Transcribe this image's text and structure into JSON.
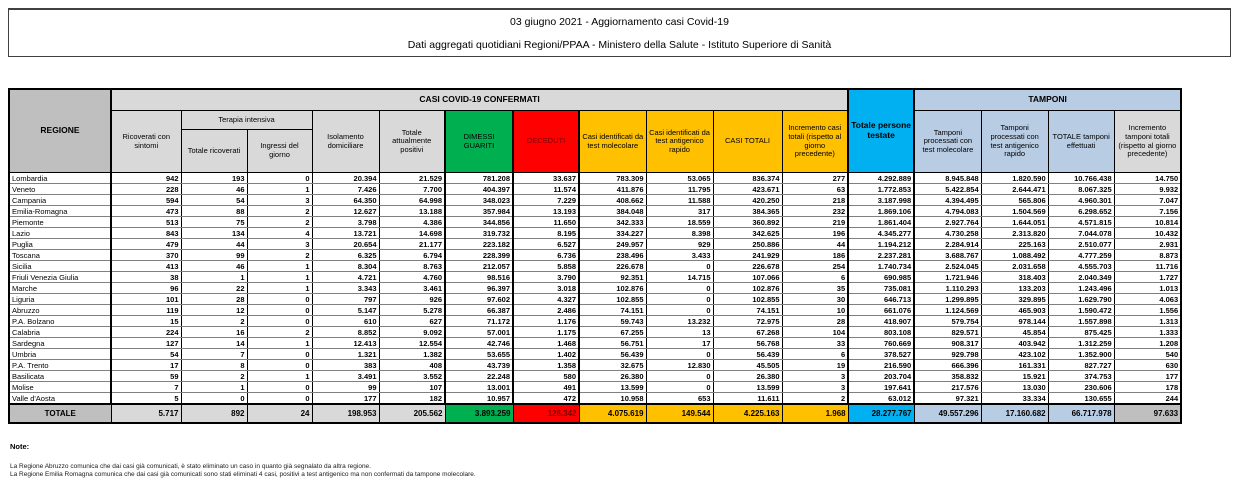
{
  "title": {
    "line1": "03 giugno 2021 - Aggiornamento casi Covid-19",
    "line2": "Dati aggregati quotidiani Regioni/PPAA - Ministero della Salute - Istituto Superiore di Sanità"
  },
  "colors": {
    "green": "#00B050",
    "red": "#FF0000",
    "dark_red_text": "#7F0000",
    "yellow": "#FFC000",
    "cyan": "#00B0F0",
    "light_blue": "#B8CCE4",
    "gray_dark": "#BFBFBF",
    "gray_light": "#D9D9D9"
  },
  "table": {
    "region_header": "REGIONE",
    "confirmed_band": "CASI COVID-19 CONFERMATI",
    "tamponi_band": "TAMPONI",
    "terapia_band": "Terapia intensiva",
    "col_headers": {
      "ricoverati": "Ricoverati con sintomi",
      "terapia_totale": "Totale ricoverati",
      "terapia_ingressi": "Ingressi del giorno",
      "isolamento": "Isolamento domiciliare",
      "positivi": "Totale attualmente positivi",
      "guariti": "DIMESSI GUARITI",
      "deceduti": "DECEDUTI",
      "casi_molecolare": "Casi identificati da test molecolare",
      "casi_antigenico": "Casi identificati da test antigenico rapido",
      "casi_totali": "CASI TOTALI",
      "incremento_casi": "Incremento casi totali (rispetto al giorno precedente)",
      "persone_testate": "Totale persone testate",
      "tamponi_molecolare": "Tamponi processati con test molecolare",
      "tamponi_antigenico": "Tamponi processati con test antigenico rapido",
      "tamponi_totale": "TOTALE tamponi effettuati",
      "incremento_tamponi": "Incremento tamponi totali (rispetto al giorno precedente)"
    },
    "rows": [
      {
        "region": "Lombardia",
        "values": [
          "942",
          "193",
          "0",
          "20.394",
          "21.529",
          "781.208",
          "33.637",
          "783.309",
          "53.065",
          "836.374",
          "277",
          "4.292.889",
          "8.945.848",
          "1.820.590",
          "10.766.438",
          "14.750"
        ]
      },
      {
        "region": "Veneto",
        "values": [
          "228",
          "46",
          "1",
          "7.426",
          "7.700",
          "404.397",
          "11.574",
          "411.876",
          "11.795",
          "423.671",
          "63",
          "1.772.853",
          "5.422.854",
          "2.644.471",
          "8.067.325",
          "9.932"
        ]
      },
      {
        "region": "Campania",
        "values": [
          "594",
          "54",
          "3",
          "64.350",
          "64.998",
          "348.023",
          "7.229",
          "408.662",
          "11.588",
          "420.250",
          "218",
          "3.187.998",
          "4.394.495",
          "565.806",
          "4.960.301",
          "7.047"
        ]
      },
      {
        "region": "Emilia-Romagna",
        "values": [
          "473",
          "88",
          "2",
          "12.627",
          "13.188",
          "357.984",
          "13.193",
          "384.048",
          "317",
          "384.365",
          "232",
          "1.869.106",
          "4.794.083",
          "1.504.569",
          "6.298.652",
          "7.156"
        ]
      },
      {
        "region": "Piemonte",
        "values": [
          "513",
          "75",
          "2",
          "3.798",
          "4.386",
          "344.856",
          "11.650",
          "342.333",
          "18.559",
          "360.892",
          "219",
          "1.861.404",
          "2.927.764",
          "1.644.051",
          "4.571.815",
          "10.814"
        ]
      },
      {
        "region": "Lazio",
        "values": [
          "843",
          "134",
          "4",
          "13.721",
          "14.698",
          "319.732",
          "8.195",
          "334.227",
          "8.398",
          "342.625",
          "196",
          "4.345.277",
          "4.730.258",
          "2.313.820",
          "7.044.078",
          "10.432"
        ]
      },
      {
        "region": "Puglia",
        "values": [
          "479",
          "44",
          "3",
          "20.654",
          "21.177",
          "223.182",
          "6.527",
          "249.957",
          "929",
          "250.886",
          "44",
          "1.194.212",
          "2.284.914",
          "225.163",
          "2.510.077",
          "2.931"
        ]
      },
      {
        "region": "Toscana",
        "values": [
          "370",
          "99",
          "2",
          "6.325",
          "6.794",
          "228.399",
          "6.736",
          "238.496",
          "3.433",
          "241.929",
          "186",
          "2.237.281",
          "3.688.767",
          "1.088.492",
          "4.777.259",
          "8.873"
        ]
      },
      {
        "region": "Sicilia",
        "values": [
          "413",
          "46",
          "1",
          "8.304",
          "8.763",
          "212.057",
          "5.858",
          "226.678",
          "0",
          "226.678",
          "254",
          "1.740.734",
          "2.524.045",
          "2.031.658",
          "4.555.703",
          "11.716"
        ]
      },
      {
        "region": "Friuli Venezia Giulia",
        "values": [
          "38",
          "1",
          "1",
          "4.721",
          "4.760",
          "98.516",
          "3.790",
          "92.351",
          "14.715",
          "107.066",
          "6",
          "690.985",
          "1.721.946",
          "318.403",
          "2.040.349",
          "1.727"
        ]
      },
      {
        "region": "Marche",
        "values": [
          "96",
          "22",
          "1",
          "3.343",
          "3.461",
          "96.397",
          "3.018",
          "102.876",
          "0",
          "102.876",
          "35",
          "735.081",
          "1.110.293",
          "133.203",
          "1.243.496",
          "1.013"
        ]
      },
      {
        "region": "Liguria",
        "values": [
          "101",
          "28",
          "0",
          "797",
          "926",
          "97.602",
          "4.327",
          "102.855",
          "0",
          "102.855",
          "30",
          "646.713",
          "1.299.895",
          "329.895",
          "1.629.790",
          "4.063"
        ]
      },
      {
        "region": "Abruzzo",
        "values": [
          "119",
          "12",
          "0",
          "5.147",
          "5.278",
          "66.387",
          "2.486",
          "74.151",
          "0",
          "74.151",
          "10",
          "661.076",
          "1.124.569",
          "465.903",
          "1.590.472",
          "1.556"
        ]
      },
      {
        "region": "P.A. Bolzano",
        "values": [
          "15",
          "2",
          "0",
          "610",
          "627",
          "71.172",
          "1.176",
          "59.743",
          "13.232",
          "72.975",
          "28",
          "418.907",
          "579.754",
          "978.144",
          "1.557.898",
          "1.313"
        ]
      },
      {
        "region": "Calabria",
        "values": [
          "224",
          "16",
          "2",
          "8.852",
          "9.092",
          "57.001",
          "1.175",
          "67.255",
          "13",
          "67.268",
          "104",
          "803.108",
          "829.571",
          "45.854",
          "875.425",
          "1.333"
        ]
      },
      {
        "region": "Sardegna",
        "values": [
          "127",
          "14",
          "1",
          "12.413",
          "12.554",
          "42.746",
          "1.468",
          "56.751",
          "17",
          "56.768",
          "33",
          "760.669",
          "908.317",
          "403.942",
          "1.312.259",
          "1.208"
        ]
      },
      {
        "region": "Umbria",
        "values": [
          "54",
          "7",
          "0",
          "1.321",
          "1.382",
          "53.655",
          "1.402",
          "56.439",
          "0",
          "56.439",
          "6",
          "378.527",
          "929.798",
          "423.102",
          "1.352.900",
          "540"
        ]
      },
      {
        "region": "P.A. Trento",
        "values": [
          "17",
          "8",
          "0",
          "383",
          "408",
          "43.739",
          "1.358",
          "32.675",
          "12.830",
          "45.505",
          "19",
          "216.590",
          "666.396",
          "161.331",
          "827.727",
          "630"
        ]
      },
      {
        "region": "Basilicata",
        "values": [
          "59",
          "2",
          "1",
          "3.491",
          "3.552",
          "22.248",
          "580",
          "26.380",
          "0",
          "26.380",
          "3",
          "203.704",
          "358.832",
          "15.921",
          "374.753",
          "177"
        ]
      },
      {
        "region": "Molise",
        "values": [
          "7",
          "1",
          "0",
          "99",
          "107",
          "13.001",
          "491",
          "13.599",
          "0",
          "13.599",
          "3",
          "197.641",
          "217.576",
          "13.030",
          "230.606",
          "178"
        ]
      },
      {
        "region": "Valle d'Aosta",
        "values": [
          "5",
          "0",
          "0",
          "177",
          "182",
          "10.957",
          "472",
          "10.958",
          "653",
          "11.611",
          "2",
          "63.012",
          "97.321",
          "33.334",
          "130.655",
          "244"
        ]
      }
    ],
    "total_row": {
      "label": "TOTALE",
      "values": [
        "5.717",
        "892",
        "24",
        "198.953",
        "205.562",
        "3.893.259",
        "126.342",
        "4.075.619",
        "149.544",
        "4.225.163",
        "1.968",
        "28.277.767",
        "49.557.296",
        "17.160.682",
        "66.717.978",
        "97.633"
      ]
    }
  },
  "notes": {
    "heading": "Note:",
    "lines": [
      "La Regione Abruzzo comunica che dai casi già comunicati, è stato eliminato un caso in quanto già segnalato da altra regione.",
      "La Regione Emilia Romagna comunica che dai casi già comunicati sono stati eliminati 4 casi, positivi a test antigenico ma non confermati da tampone molecolare."
    ]
  }
}
